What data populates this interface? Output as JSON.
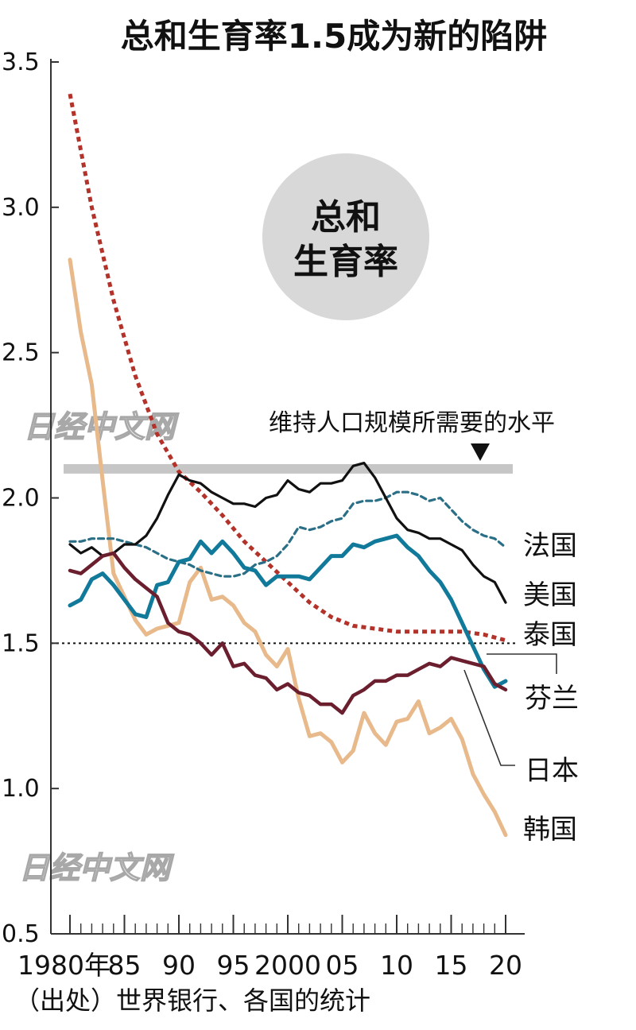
{
  "chart_data": {
    "type": "line",
    "title": "总和生育率1.5成为新的陷阱",
    "ylabel_badge": [
      "总和",
      "生育率"
    ],
    "source": "（出处）世界银行、各国的统计",
    "watermark": "日经中文网",
    "ylim": [
      0.5,
      3.5
    ],
    "yticks": [
      "0.5",
      "1.0",
      "1.5",
      "2.0",
      "2.5",
      "3.0",
      "3.5"
    ],
    "xlim": [
      1980,
      2020
    ],
    "xticks": [
      {
        "year": 1980,
        "label": "1980年"
      },
      {
        "year": 1985,
        "label": "85"
      },
      {
        "year": 1990,
        "label": "90"
      },
      {
        "year": 1995,
        "label": "95"
      },
      {
        "year": 2000,
        "label": "2000"
      },
      {
        "year": 2005,
        "label": "05"
      },
      {
        "year": 2010,
        "label": "10"
      },
      {
        "year": 2015,
        "label": "15"
      },
      {
        "year": 2020,
        "label": "20"
      }
    ],
    "replacement": {
      "value": 2.1,
      "label": "维持人口规模所需要的水平"
    },
    "reference_line": 1.5,
    "colors": {
      "france": "#2a6f86",
      "usa": "#111111",
      "thailand": "#b3322a",
      "finland": "#117a9a",
      "japan": "#6b1f2e",
      "korea": "#e8b98a",
      "replacement_band": "#c6c6c6",
      "badge": "#d8d8d8",
      "axis": "#333333"
    },
    "series": [
      {
        "name": "法国",
        "key": "france",
        "style": "dashed",
        "x": [
          1980,
          1981,
          1982,
          1983,
          1984,
          1985,
          1986,
          1987,
          1988,
          1989,
          1990,
          1991,
          1992,
          1993,
          1994,
          1995,
          1996,
          1997,
          1998,
          1999,
          2000,
          2001,
          2002,
          2003,
          2004,
          2005,
          2006,
          2007,
          2008,
          2009,
          2010,
          2011,
          2012,
          2013,
          2014,
          2015,
          2016,
          2017,
          2018,
          2019,
          2020
        ],
        "y": [
          1.85,
          1.85,
          1.86,
          1.86,
          1.86,
          1.85,
          1.84,
          1.83,
          1.81,
          1.79,
          1.78,
          1.77,
          1.75,
          1.74,
          1.73,
          1.73,
          1.74,
          1.77,
          1.78,
          1.8,
          1.84,
          1.9,
          1.89,
          1.9,
          1.92,
          1.93,
          1.98,
          1.99,
          1.99,
          2.0,
          2.02,
          2.02,
          2.01,
          1.99,
          2.0,
          1.96,
          1.92,
          1.89,
          1.87,
          1.86,
          1.83
        ]
      },
      {
        "name": "美国",
        "key": "usa",
        "style": "solid",
        "x": [
          1980,
          1981,
          1982,
          1983,
          1984,
          1985,
          1986,
          1987,
          1988,
          1989,
          1990,
          1991,
          1992,
          1993,
          1994,
          1995,
          1996,
          1997,
          1998,
          1999,
          2000,
          2001,
          2002,
          2003,
          2004,
          2005,
          2006,
          2007,
          2008,
          2009,
          2010,
          2011,
          2012,
          2013,
          2014,
          2015,
          2016,
          2017,
          2018,
          2019,
          2020
        ],
        "y": [
          1.84,
          1.81,
          1.83,
          1.8,
          1.81,
          1.84,
          1.84,
          1.87,
          1.93,
          2.01,
          2.08,
          2.06,
          2.05,
          2.02,
          2.0,
          1.98,
          1.98,
          1.97,
          2.0,
          2.01,
          2.06,
          2.03,
          2.02,
          2.05,
          2.05,
          2.06,
          2.11,
          2.12,
          2.07,
          2.0,
          1.93,
          1.89,
          1.88,
          1.86,
          1.86,
          1.84,
          1.82,
          1.77,
          1.73,
          1.71,
          1.64
        ]
      },
      {
        "name": "泰国",
        "key": "thailand",
        "style": "dotted",
        "x": [
          1980,
          1982,
          1984,
          1986,
          1988,
          1990,
          1992,
          1994,
          1996,
          1998,
          2000,
          2002,
          2004,
          2006,
          2008,
          2010,
          2012,
          2014,
          2016,
          2018,
          2020
        ],
        "y": [
          3.39,
          3.0,
          2.68,
          2.42,
          2.22,
          2.09,
          2.02,
          1.94,
          1.85,
          1.78,
          1.71,
          1.64,
          1.59,
          1.56,
          1.55,
          1.54,
          1.54,
          1.54,
          1.54,
          1.53,
          1.51
        ]
      },
      {
        "name": "芬兰",
        "key": "finland",
        "style": "solid",
        "x": [
          1980,
          1981,
          1982,
          1983,
          1984,
          1985,
          1986,
          1987,
          1988,
          1989,
          1990,
          1991,
          1992,
          1993,
          1994,
          1995,
          1996,
          1997,
          1998,
          1999,
          2000,
          2001,
          2002,
          2003,
          2004,
          2005,
          2006,
          2007,
          2008,
          2009,
          2010,
          2011,
          2012,
          2013,
          2014,
          2015,
          2016,
          2017,
          2018,
          2019,
          2020
        ],
        "y": [
          1.63,
          1.65,
          1.72,
          1.74,
          1.7,
          1.65,
          1.6,
          1.59,
          1.7,
          1.71,
          1.78,
          1.79,
          1.85,
          1.81,
          1.85,
          1.81,
          1.76,
          1.75,
          1.7,
          1.73,
          1.73,
          1.73,
          1.72,
          1.76,
          1.8,
          1.8,
          1.84,
          1.83,
          1.85,
          1.86,
          1.87,
          1.83,
          1.8,
          1.75,
          1.71,
          1.65,
          1.57,
          1.49,
          1.41,
          1.35,
          1.37
        ]
      },
      {
        "name": "日本",
        "key": "japan",
        "style": "solid",
        "x": [
          1980,
          1981,
          1982,
          1983,
          1984,
          1985,
          1986,
          1987,
          1988,
          1989,
          1990,
          1991,
          1992,
          1993,
          1994,
          1995,
          1996,
          1997,
          1998,
          1999,
          2000,
          2001,
          2002,
          2003,
          2004,
          2005,
          2006,
          2007,
          2008,
          2009,
          2010,
          2011,
          2012,
          2013,
          2014,
          2015,
          2016,
          2017,
          2018,
          2019,
          2020
        ],
        "y": [
          1.75,
          1.74,
          1.77,
          1.8,
          1.81,
          1.76,
          1.72,
          1.69,
          1.66,
          1.57,
          1.54,
          1.53,
          1.5,
          1.46,
          1.5,
          1.42,
          1.43,
          1.39,
          1.38,
          1.34,
          1.36,
          1.33,
          1.32,
          1.29,
          1.29,
          1.26,
          1.32,
          1.34,
          1.37,
          1.37,
          1.39,
          1.39,
          1.41,
          1.43,
          1.42,
          1.45,
          1.44,
          1.43,
          1.42,
          1.36,
          1.34
        ]
      },
      {
        "name": "韩国",
        "key": "korea",
        "style": "solid",
        "x": [
          1980,
          1981,
          1982,
          1983,
          1984,
          1985,
          1986,
          1987,
          1988,
          1989,
          1990,
          1991,
          1992,
          1993,
          1994,
          1995,
          1996,
          1997,
          1998,
          1999,
          2000,
          2001,
          2002,
          2003,
          2004,
          2005,
          2006,
          2007,
          2008,
          2009,
          2010,
          2011,
          2012,
          2013,
          2014,
          2015,
          2016,
          2017,
          2018,
          2019,
          2020
        ],
        "y": [
          2.82,
          2.57,
          2.39,
          2.06,
          1.74,
          1.66,
          1.58,
          1.53,
          1.55,
          1.56,
          1.57,
          1.71,
          1.76,
          1.65,
          1.66,
          1.63,
          1.57,
          1.54,
          1.46,
          1.42,
          1.48,
          1.31,
          1.18,
          1.19,
          1.16,
          1.09,
          1.13,
          1.26,
          1.19,
          1.15,
          1.23,
          1.24,
          1.3,
          1.19,
          1.21,
          1.24,
          1.17,
          1.05,
          0.98,
          0.92,
          0.84
        ]
      }
    ]
  }
}
